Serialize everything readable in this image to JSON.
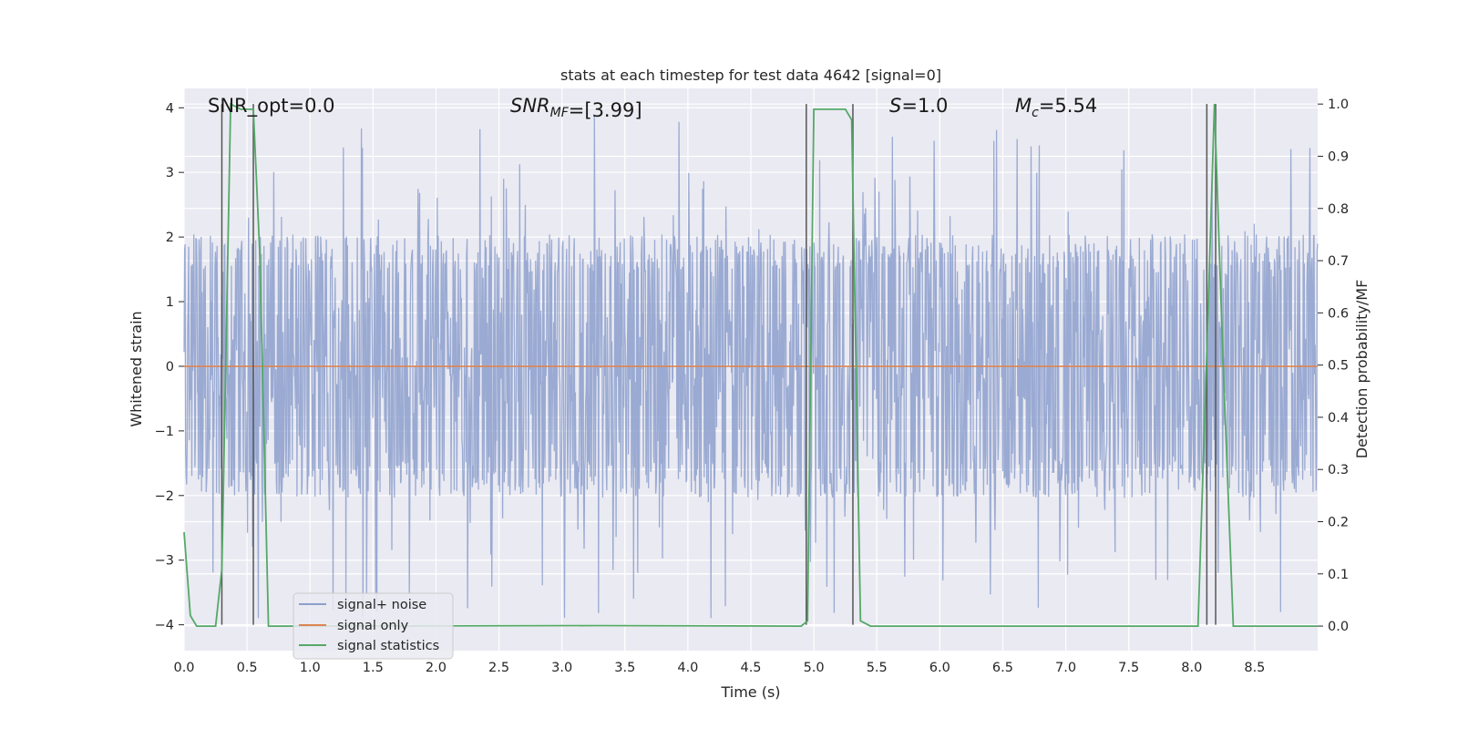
{
  "chart_data": {
    "type": "line",
    "title": "stats at each timestep for test data 4642 [signal=0]",
    "xlabel": "Time (s)",
    "ylabel": "Whitened strain",
    "y2label": "Detection probability/MF",
    "xlim": [
      0,
      9
    ],
    "ylim": [
      -4.4,
      4.3
    ],
    "y2lim": [
      -0.047,
      1.03
    ],
    "xticks": [
      "0.0",
      "0.5",
      "1.0",
      "1.5",
      "2.0",
      "2.5",
      "3.0",
      "3.5",
      "4.0",
      "4.5",
      "5.0",
      "5.5",
      "6.0",
      "6.5",
      "7.0",
      "7.5",
      "8.0",
      "8.5"
    ],
    "yticks": [
      "4",
      "3",
      "2",
      "1",
      "0",
      "−1",
      "−2",
      "−3",
      "−4"
    ],
    "y2ticks": [
      "1.0",
      "0.9",
      "0.8",
      "0.7",
      "0.6",
      "0.5",
      "0.4",
      "0.3",
      "0.2",
      "0.1",
      "0.0"
    ],
    "grid": true,
    "legend_position": "lower-left",
    "annotations": {
      "snr_opt": "SNR_opt=0.0",
      "snr_mf": "=[3.99]",
      "s": "=1.0",
      "mc": "=5.54"
    },
    "series": [
      {
        "name": "signal+ noise",
        "color": "#8c9fcc",
        "description_stat": "noise band approx ±1.5 with spikes to ±4",
        "envelope": {
          "typical_hi": 1.6,
          "typical_lo": -1.7,
          "peak_hi": 3.9,
          "peak_lo": -4.0
        }
      },
      {
        "name": "signal only",
        "color": "#dd8452",
        "x": [
          0,
          9
        ],
        "y": [
          0,
          0
        ]
      },
      {
        "name": "signal statistics",
        "color": "#55a868",
        "axis": "right",
        "x": [
          0.0,
          0.05,
          0.1,
          0.25,
          0.3,
          0.37,
          0.45,
          0.55,
          0.6,
          0.67,
          0.7,
          3.3,
          4.9,
          4.95,
          5.0,
          5.25,
          5.3,
          5.37,
          5.45,
          8.05,
          8.13,
          8.18,
          8.25,
          8.33,
          9.0
        ],
        "y": [
          0.18,
          0.02,
          0.0,
          0.0,
          0.11,
          1.0,
          0.99,
          0.99,
          0.72,
          0.0,
          0.0,
          0.001,
          0.0,
          0.01,
          0.99,
          0.99,
          0.97,
          0.01,
          0.0,
          0.0,
          0.6,
          1.0,
          0.5,
          0.0,
          0.0
        ]
      }
    ],
    "vlines": [
      {
        "x": 0.3,
        "color": "#555555"
      },
      {
        "x": 0.55,
        "color": "#555555"
      },
      {
        "x": 4.94,
        "color": "#555555"
      },
      {
        "x": 5.31,
        "color": "#555555"
      },
      {
        "x": 8.12,
        "color": "#555555"
      },
      {
        "x": 8.19,
        "color": "#555555"
      }
    ],
    "colors": {
      "panel_bg": "#eaeaf2",
      "grid": "#ffffff",
      "noise": "#8c9fcc",
      "signal": "#dd8452",
      "stats": "#55a868",
      "vline": "#555555"
    }
  }
}
